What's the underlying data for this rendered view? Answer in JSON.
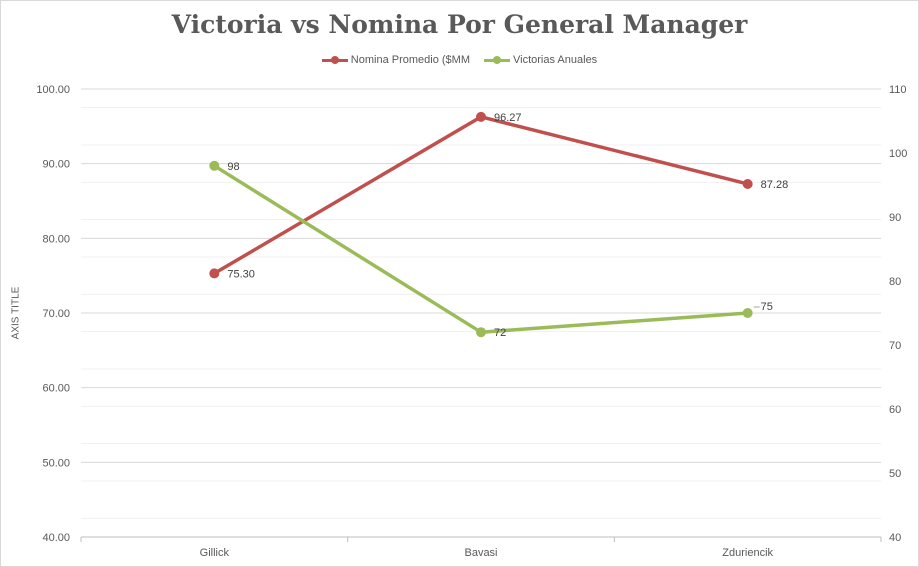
{
  "chart_data": {
    "type": "line",
    "title": "Victoria vs Nomina Por General Manager",
    "categories": [
      "Gillick",
      "Bavasi",
      "Zduriencik"
    ],
    "ylabel": "AXIS TITLE",
    "xlabel": "",
    "ylim": [
      40,
      100
    ],
    "y2lim": [
      40,
      110
    ],
    "y_ticks": [
      "100.00",
      "90.00",
      "80.00",
      "70.00",
      "60.00",
      "50.00",
      "40.00"
    ],
    "y2_ticks": [
      "110",
      "100",
      "90",
      "80",
      "70",
      "60",
      "50",
      "40"
    ],
    "grid": true,
    "legend_position": "top",
    "series": [
      {
        "name": "Nomina Promedio ($MM",
        "axis": "primary",
        "color": "#c0504d",
        "values": [
          75.3,
          96.27,
          87.28
        ],
        "labels": [
          "75.30",
          "96.27",
          "87.28"
        ]
      },
      {
        "name": "Victorias Anuales",
        "axis": "secondary",
        "color": "#9bbb59",
        "values": [
          98,
          72,
          75
        ],
        "labels": [
          "98",
          "72",
          "75"
        ]
      }
    ]
  }
}
